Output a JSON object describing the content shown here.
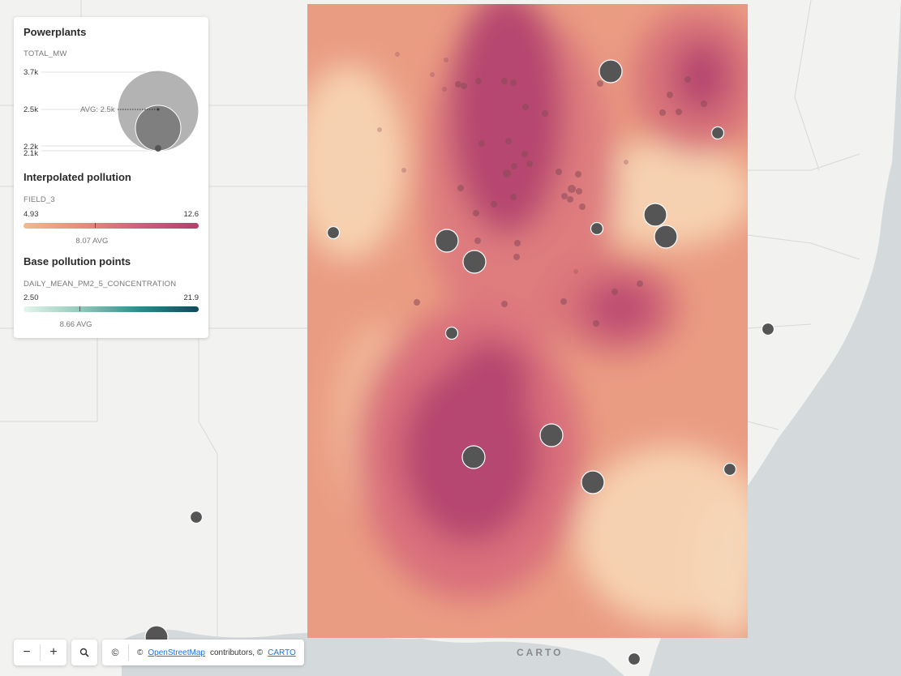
{
  "legend": {
    "powerplants": {
      "title": "Powerplants",
      "field": "TOTAL_MW",
      "ticks": [
        "3.7k",
        "2.5k",
        "2.2k",
        "2.1k"
      ],
      "avg_label": "AVG: 2.5k"
    },
    "interpolated": {
      "title": "Interpolated pollution",
      "field": "FIELD_3",
      "min": "4.93",
      "max": "12.6",
      "avg_label": "8.07 AVG",
      "avg_value": 8.07,
      "colors": [
        "#f5b989",
        "#e88c7c",
        "#cf5f7f",
        "#b1416e"
      ]
    },
    "base_points": {
      "title": "Base pollution points",
      "field": "DAILY_MEAN_PM2_5_CONCENTRATION",
      "min": "2.50",
      "max": "21.9",
      "avg_label": "8.66 AVG",
      "avg_value": 8.66,
      "colors": [
        "#e5f5ec",
        "#8ec8b8",
        "#2d8a8b",
        "#0f4a5c"
      ]
    }
  },
  "controls": {
    "zoom_out": "−",
    "zoom_in": "+",
    "search_icon": "search-icon",
    "copyright": "©",
    "attribution_prefix": "©",
    "osm_link": "OpenStreetMap",
    "attribution_mid": "contributors, ©",
    "carto_link": "CARTO"
  },
  "map": {
    "watermark": "CARTO",
    "water_color": "#d4dadc",
    "land_color": "#f2f2f0",
    "powerplant_color": "#555555"
  }
}
